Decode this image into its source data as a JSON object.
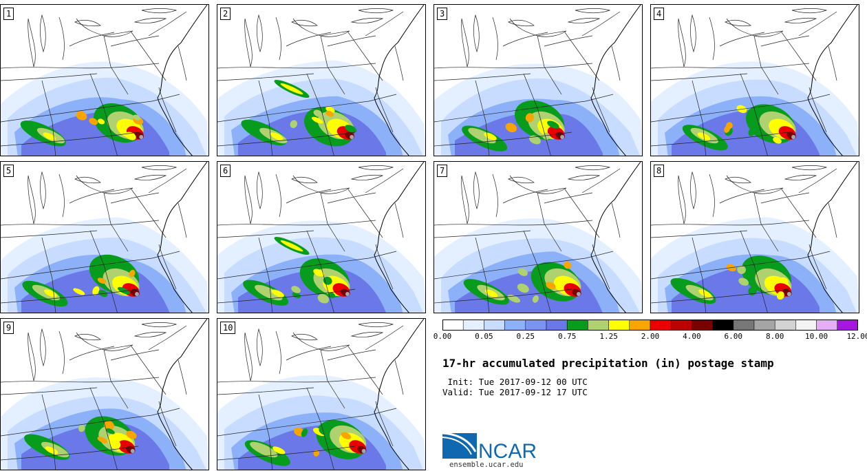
{
  "panels": [
    {
      "label": "1"
    },
    {
      "label": "2"
    },
    {
      "label": "3"
    },
    {
      "label": "4"
    },
    {
      "label": "5"
    },
    {
      "label": "6"
    },
    {
      "label": "7"
    },
    {
      "label": "8"
    },
    {
      "label": "9"
    },
    {
      "label": "10"
    }
  ],
  "legend": {
    "colors": [
      "#ffffff",
      "#e4f0ff",
      "#c8dcff",
      "#8cb1f9",
      "#7a94ef",
      "#6a78e8",
      "#089c1e",
      "#afd170",
      "#ffff00",
      "#f9a500",
      "#ea0000",
      "#ba0000",
      "#7a0000",
      "#000000",
      "#777777",
      "#a5a5a5",
      "#d2d2d2",
      "#f3f3f3",
      "#e6adf7",
      "#a516df"
    ],
    "tick_labels": [
      "0.00",
      "0.05",
      "0.25",
      "0.75",
      "1.25",
      "2.00",
      "4.00",
      "6.00",
      "8.00",
      "10.00",
      "12.00"
    ]
  },
  "title": "17-hr accumulated precipitation (in) postage stamp",
  "init": " Init: Tue 2017-09-12 00 UTC",
  "valid": "Valid: Tue 2017-09-12 17 UTC",
  "logo": {
    "text": "NCAR",
    "url": "ensemble.ucar.edu",
    "color": "#0f68b0"
  }
}
